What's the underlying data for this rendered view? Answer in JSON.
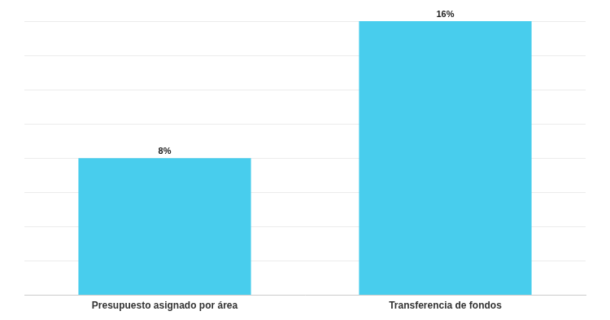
{
  "chart_data": {
    "type": "bar",
    "categories": [
      "Presupuesto asignado por área",
      "Transferencia de fondos"
    ],
    "values": [
      8,
      16
    ],
    "value_labels": [
      "8%",
      "16%"
    ],
    "color": "#48cded",
    "ylim": [
      0,
      16
    ],
    "yticks": [
      0,
      2,
      4,
      6,
      8,
      10,
      12,
      14,
      16
    ],
    "grid": true,
    "data_labels": true,
    "tick_labels": "x"
  }
}
